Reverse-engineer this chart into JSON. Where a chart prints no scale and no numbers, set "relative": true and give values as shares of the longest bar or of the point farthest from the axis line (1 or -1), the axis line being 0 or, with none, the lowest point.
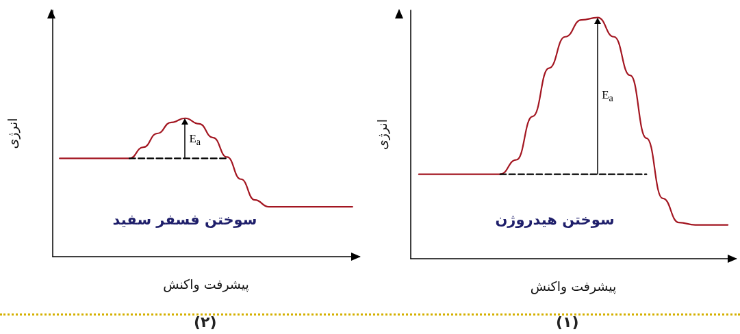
{
  "chart_data": [
    {
      "type": "line",
      "relative": true,
      "title": "سوختن فسفر سفید",
      "xlabel": "پیشرفت واکنش",
      "ylabel": "انرژی",
      "categories": [
        null,
        null,
        null,
        null,
        null,
        null,
        null,
        null,
        null,
        null,
        null,
        null,
        null,
        null,
        null,
        null,
        null,
        null,
        null,
        null,
        null,
        null
      ],
      "series": [
        {
          "color": "#a31621",
          "line_style": "solid",
          "values": [
            0.71,
            0.71,
            0.71,
            0.71,
            0.71,
            0.71,
            0.79,
            0.89,
            0.97,
            1,
            0.96,
            0.86,
            0.72,
            0.56,
            0.41,
            0.36,
            0.36,
            0.36,
            0.36,
            0.36,
            0.36,
            0.36
          ]
        },
        {
          "color": "#000000",
          "line_style": "dashed",
          "values": [
            null,
            null,
            null,
            null,
            null,
            0.71,
            0.71,
            0.71,
            0.71,
            0.71,
            0.71,
            0.71,
            0.71,
            null,
            null,
            null,
            null,
            null,
            null,
            null,
            null,
            null
          ]
        }
      ],
      "annotations": [
        "E$_{a}$",
        "(۲)"
      ]
    },
    {
      "type": "line",
      "relative": true,
      "title": "سوختن هیدروژن",
      "xlabel": "پیشرفت واکنش",
      "ylabel": "انرژی",
      "categories": [
        null,
        null,
        null,
        null,
        null,
        null,
        null,
        null,
        null,
        null,
        null,
        null,
        null,
        null,
        null,
        null,
        null,
        null,
        null,
        null
      ],
      "series": [
        {
          "color": "#a31621",
          "line_style": "solid",
          "values": [
            0.35,
            0.35,
            0.35,
            0.35,
            0.35,
            0.35,
            0.41,
            0.59,
            0.79,
            0.92,
            0.99,
            1,
            0.92,
            0.76,
            0.5,
            0.25,
            0.15,
            0.14,
            0.14,
            0.14
          ]
        },
        {
          "color": "#000000",
          "line_style": "dashed",
          "values": [
            null,
            null,
            null,
            null,
            null,
            0.35,
            0.35,
            0.35,
            0.35,
            0.35,
            0.35,
            0.35,
            0.35,
            0.35,
            0.35,
            null,
            null,
            null,
            null,
            null
          ]
        }
      ],
      "annotations": [
        "E$_{a}$",
        "(۱)"
      ]
    }
  ]
}
